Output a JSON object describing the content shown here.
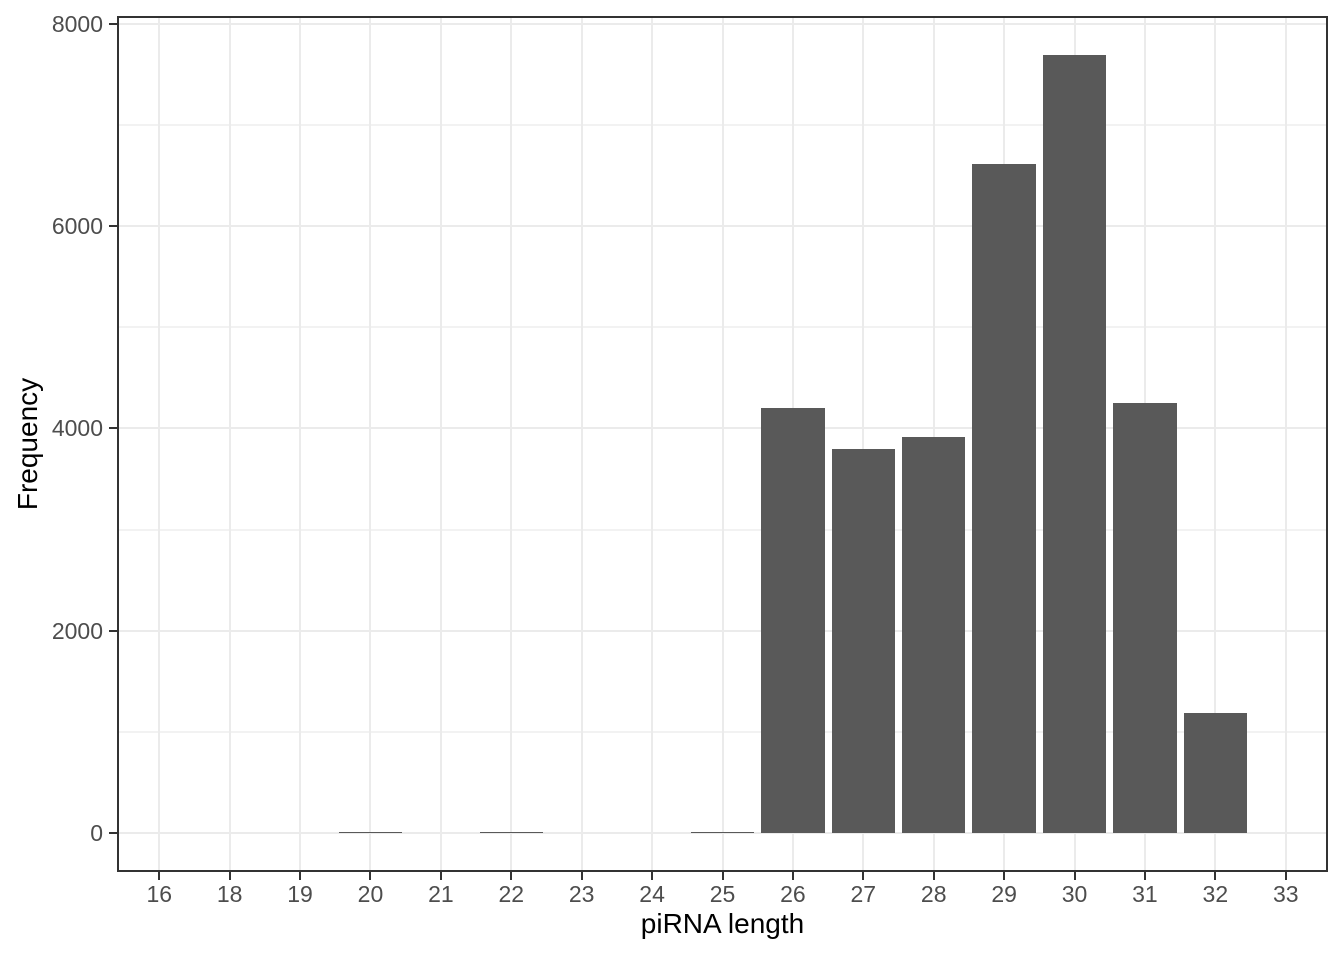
{
  "chart_data": {
    "type": "bar",
    "xlabel": "piRNA length",
    "ylabel": "Frequency",
    "categories": [
      "16",
      "18",
      "19",
      "20",
      "21",
      "22",
      "23",
      "24",
      "25",
      "26",
      "27",
      "28",
      "29",
      "30",
      "31",
      "32",
      "33"
    ],
    "values": [
      0,
      0,
      0,
      15,
      0,
      15,
      0,
      0,
      15,
      4200,
      3800,
      3910,
      6610,
      7690,
      4250,
      1190,
      0
    ],
    "y_ticks": [
      "0",
      "2000",
      "4000",
      "6000",
      "8000"
    ],
    "y_minor_gridlines": [
      1000,
      3000,
      5000,
      7000
    ],
    "ylim": [
      0,
      8000
    ],
    "grid": "on",
    "legend": "none",
    "bar_width_fraction": 0.9,
    "colors": {
      "bar_fill": "#595959",
      "panel_border": "#333333",
      "tick_mark": "#333333",
      "tick_label": "#4d4d4d",
      "axis_title": "#000000",
      "grid_major": "#ebebeb",
      "grid_minor": "#f2f2f2",
      "background": "#ffffff"
    }
  }
}
